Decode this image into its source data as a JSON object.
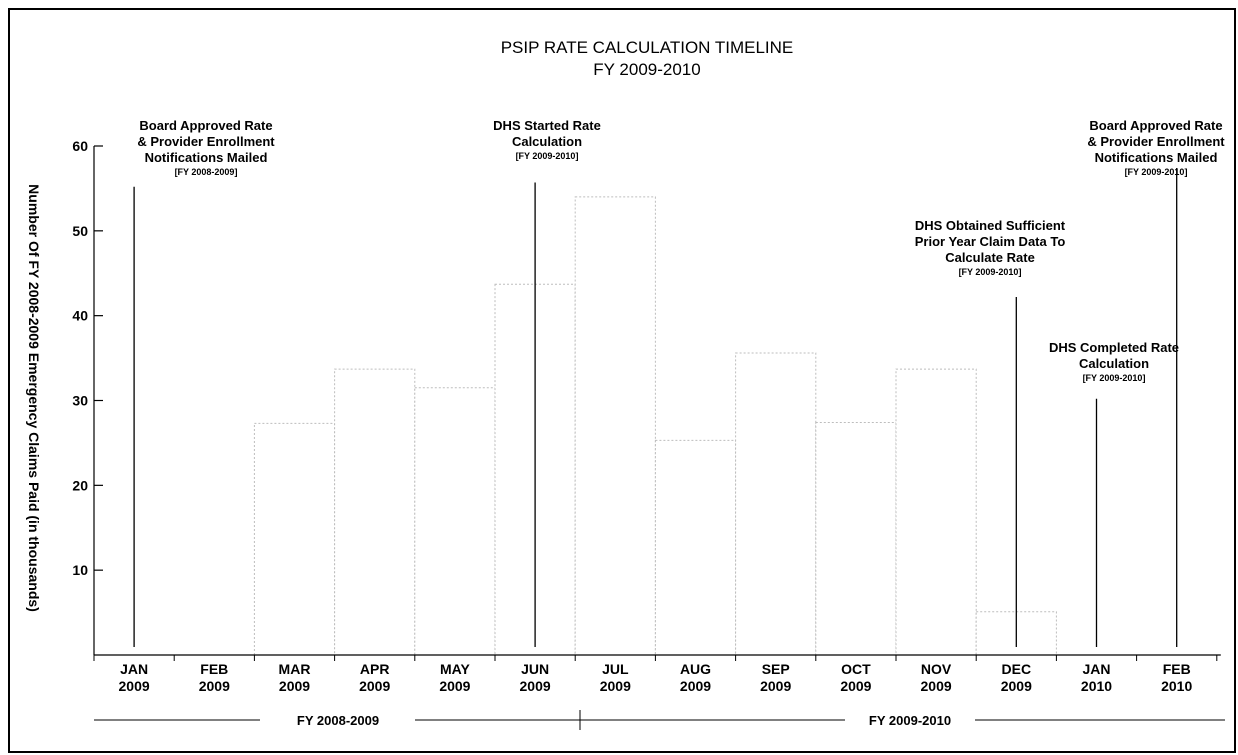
{
  "chart_data": {
    "type": "bar",
    "title": "PSIP RATE CALCULATION TIMELINE",
    "subtitle": "FY 2009-2010",
    "ylabel": "Number Of FY 2008-2009 Emergency Claims Paid (in thousands)",
    "xlabel": "",
    "ylim": [
      0,
      60
    ],
    "yticks": [
      10,
      20,
      30,
      40,
      50,
      60
    ],
    "grid": false,
    "categories": [
      {
        "month": "JAN",
        "year": "2009"
      },
      {
        "month": "FEB",
        "year": "2009"
      },
      {
        "month": "MAR",
        "year": "2009"
      },
      {
        "month": "APR",
        "year": "2009"
      },
      {
        "month": "MAY",
        "year": "2009"
      },
      {
        "month": "JUN",
        "year": "2009"
      },
      {
        "month": "JUL",
        "year": "2009"
      },
      {
        "month": "AUG",
        "year": "2009"
      },
      {
        "month": "SEP",
        "year": "2009"
      },
      {
        "month": "OCT",
        "year": "2009"
      },
      {
        "month": "NOV",
        "year": "2009"
      },
      {
        "month": "DEC",
        "year": "2009"
      },
      {
        "month": "JAN",
        "year": "2010"
      },
      {
        "month": "FEB",
        "year": "2010"
      }
    ],
    "values": [
      0,
      0,
      27.3,
      33.7,
      31.5,
      43.7,
      54.0,
      25.3,
      35.6,
      27.4,
      33.7,
      5.1,
      0,
      0
    ],
    "annotations": [
      {
        "lines": [
          "Board Approved Rate",
          "& Provider Enrollment",
          "Notifications Mailed"
        ],
        "note": "[FY 2008-2009]",
        "at": "JAN 2009",
        "line_top": 55.2,
        "align": "left"
      },
      {
        "lines": [
          "DHS Started Rate",
          "Calculation"
        ],
        "note": "[FY 2009-2010]",
        "at": "JUN 2009",
        "line_top": 55.7,
        "align": "center"
      },
      {
        "lines": [
          "DHS Obtained Sufficient",
          "Prior Year Claim Data To",
          "Calculate Rate"
        ],
        "note": "[FY 2009-2010]",
        "at": "DEC 2009",
        "line_top": 42.2,
        "align": "center"
      },
      {
        "lines": [
          "DHS Completed Rate",
          "Calculation"
        ],
        "note": "[FY 2009-2010]",
        "at": "JAN 2010",
        "line_top": 30.2,
        "align": "center"
      },
      {
        "lines": [
          "Board Approved Rate",
          "& Provider Enrollment",
          "Notifications Mailed"
        ],
        "note": "[FY 2009-2010]",
        "at": "FEB 2010",
        "line_top": 57.4,
        "align": "right"
      }
    ],
    "fiscal_years": [
      {
        "label": "FY 2008-2009"
      },
      {
        "label": "FY 2009-2010"
      }
    ],
    "colors": {
      "bar_fill": "#ffffff",
      "bar_stroke": "#bdbdbd",
      "axis": "#000000",
      "text": "#000000"
    }
  }
}
